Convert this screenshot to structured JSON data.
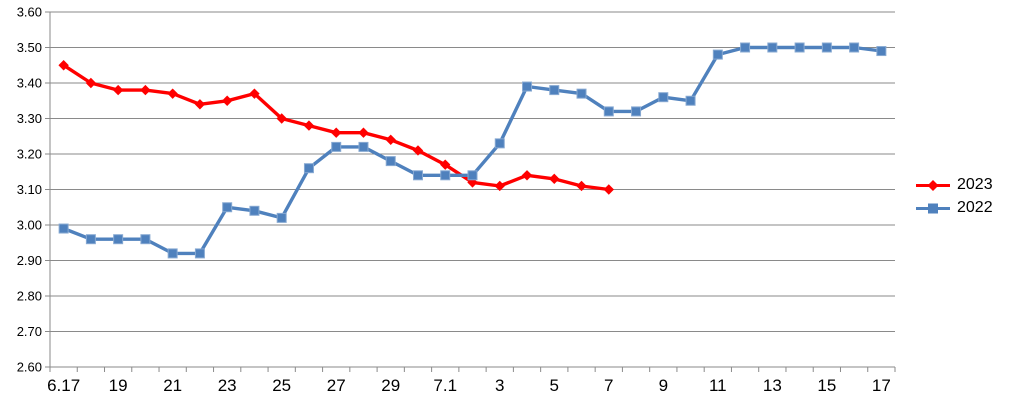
{
  "chart_data": {
    "type": "line",
    "title": "",
    "xlabel": "",
    "ylabel": "",
    "ylim": [
      2.6,
      3.6
    ],
    "y_tick_labels": [
      "2.60",
      "2.70",
      "2.80",
      "2.90",
      "3.00",
      "3.10",
      "3.20",
      "3.30",
      "3.40",
      "3.50",
      "3.60"
    ],
    "n_categories": 31,
    "x_tick_labels": [
      "6.17",
      "19",
      "21",
      "23",
      "25",
      "27",
      "29",
      "7.1",
      "3",
      "5",
      "7",
      "9",
      "11",
      "13",
      "15",
      "17"
    ],
    "x_tick_indices": [
      0,
      2,
      4,
      6,
      8,
      10,
      12,
      14,
      16,
      18,
      20,
      22,
      24,
      26,
      28,
      30
    ],
    "grid": true,
    "legend_position": "right",
    "colors": {
      "grid": "#8a8a8a",
      "axis": "#8a8a8a",
      "text": "#000000",
      "background": "#ffffff"
    },
    "series": [
      {
        "name": "2023",
        "color": "#ff0000",
        "marker": "diamond",
        "values": [
          3.45,
          3.4,
          3.38,
          3.38,
          3.37,
          3.34,
          3.35,
          3.37,
          3.3,
          3.28,
          3.26,
          3.26,
          3.24,
          3.21,
          3.17,
          3.12,
          3.11,
          3.14,
          3.13,
          3.11,
          3.1
        ]
      },
      {
        "name": "2022",
        "color": "#4f81bd",
        "marker": "square",
        "values": [
          2.99,
          2.96,
          2.96,
          2.96,
          2.92,
          2.92,
          3.05,
          3.04,
          3.02,
          3.16,
          3.22,
          3.22,
          3.18,
          3.14,
          3.14,
          3.14,
          3.23,
          3.39,
          3.38,
          3.37,
          3.32,
          3.32,
          3.36,
          3.35,
          3.48,
          3.5,
          3.5,
          3.5,
          3.5,
          3.5,
          3.49
        ]
      }
    ]
  }
}
